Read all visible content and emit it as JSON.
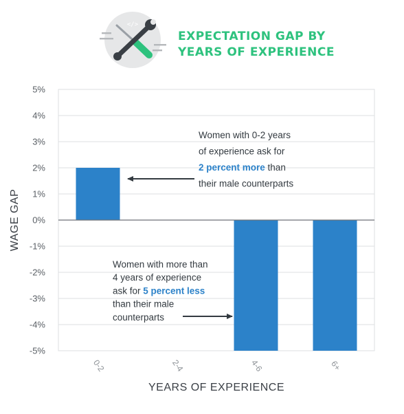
{
  "header": {
    "title_line1": "EXPECTATION GAP BY",
    "title_line2": "YEARS OF EXPERIENCE",
    "icon": "wrench-screwdriver-code-icon"
  },
  "colors": {
    "bar": "#2c82c9",
    "title": "#2ec27e",
    "emphasis": "#2c82c9",
    "grid": "#dcdfe2",
    "zero_line": "#6d7277",
    "arrow": "#333a40"
  },
  "chart_data": {
    "type": "bar",
    "title": "EXPECTATION GAP BY YEARS OF EXPERIENCE",
    "xlabel": "YEARS OF EXPERIENCE",
    "ylabel": "WAGE GAP",
    "categories": [
      "0-2",
      "2-4",
      "4-6",
      "6+"
    ],
    "values": [
      2,
      0,
      -5,
      -5
    ],
    "ylim": [
      -5,
      5
    ],
    "yticks": [
      5,
      4,
      3,
      2,
      1,
      0,
      -1,
      -2,
      -3,
      -4,
      -5
    ],
    "ytick_labels": [
      "5%",
      "4%",
      "3%",
      "2%",
      "1%",
      "0%",
      "-1%",
      "-2%",
      "-3%",
      "-4%",
      "-5%"
    ],
    "grid": true,
    "annotations": [
      {
        "lines": [
          [
            {
              "text": "Women with 0-2 years",
              "em": false
            }
          ],
          [
            {
              "text": "of experience ask for",
              "em": false
            }
          ],
          [
            {
              "text": "2 percent more",
              "em": true
            },
            {
              "text": " than",
              "em": false
            }
          ],
          [
            {
              "text": "their male counterparts",
              "em": false
            }
          ]
        ],
        "points_to": "0-2"
      },
      {
        "lines": [
          [
            {
              "text": "Women with more than",
              "em": false
            }
          ],
          [
            {
              "text": "4 years of experience",
              "em": false
            }
          ],
          [
            {
              "text": "ask for ",
              "em": false
            },
            {
              "text": "5 percent less",
              "em": true
            }
          ],
          [
            {
              "text": "than their male",
              "em": false
            }
          ],
          [
            {
              "text": "counterparts",
              "em": false
            }
          ]
        ],
        "points_to": "4-6"
      }
    ]
  }
}
